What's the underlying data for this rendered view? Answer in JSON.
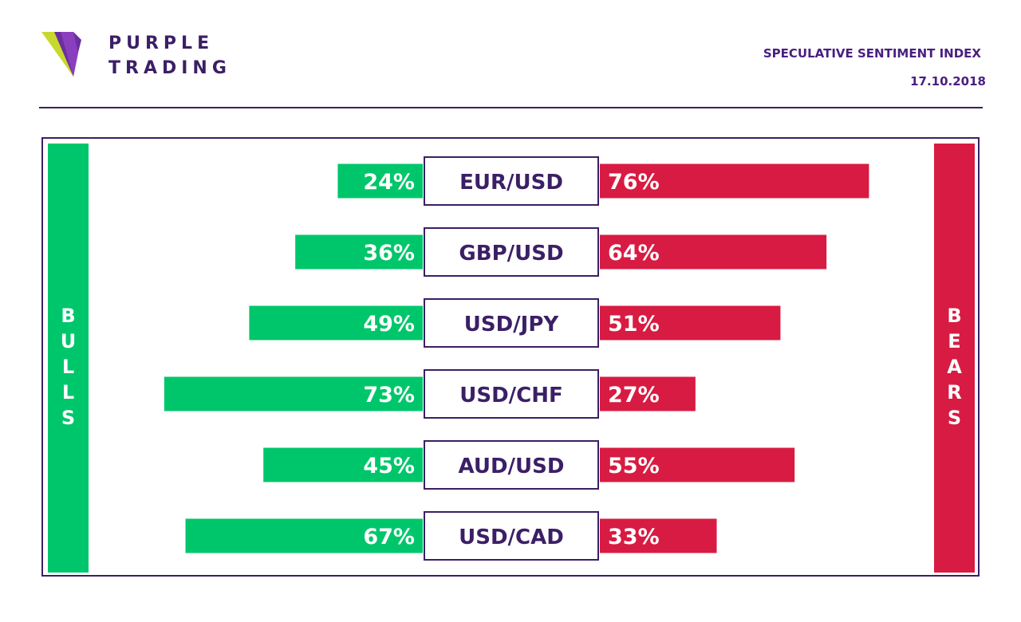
{
  "brand": {
    "line1": "PURPLE",
    "line2": "TRADING"
  },
  "header": {
    "title": "SPECULATIVE SENTIMENT INDEX",
    "date": "17.10.2018"
  },
  "colors": {
    "bulls": "#00c66b",
    "bears": "#d81b42",
    "brand": "#3b1f66"
  },
  "chart_data": {
    "type": "bar",
    "categories": [
      "EUR/USD",
      "GBP/USD",
      "USD/JPY",
      "USD/CHF",
      "AUD/USD",
      "USD/CAD"
    ],
    "series": [
      {
        "name": "BULLS",
        "values": [
          24,
          36,
          49,
          73,
          45,
          67
        ]
      },
      {
        "name": "BEARS",
        "values": [
          76,
          64,
          51,
          27,
          55,
          33
        ]
      }
    ],
    "labels_bulls": [
      "24%",
      "36%",
      "49%",
      "73%",
      "45%",
      "67%"
    ],
    "labels_bears": [
      "76%",
      "64%",
      "51%",
      "27%",
      "55%",
      "33%"
    ],
    "ylim": [
      0,
      100
    ]
  }
}
